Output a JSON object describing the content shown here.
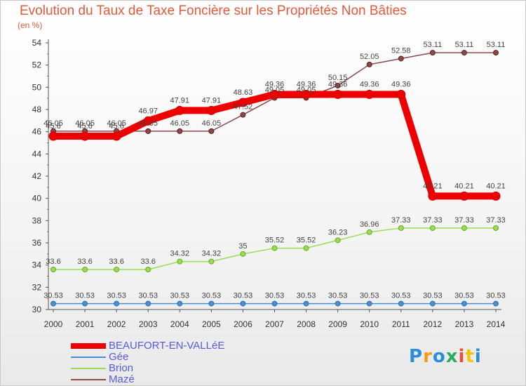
{
  "chart_data": {
    "type": "line",
    "title": "Evolution du Taux de Taxe Foncière sur les Propriétés Non Bâties",
    "ylabel": "(en %)",
    "x": [
      "2000",
      "2001",
      "2002",
      "2003",
      "2004",
      "2005",
      "2006",
      "2007",
      "2008",
      "2009",
      "2010",
      "2011",
      "2012",
      "2013",
      "2014"
    ],
    "ylim": [
      30,
      54
    ],
    "yticks": [
      30,
      32,
      34,
      36,
      38,
      40,
      42,
      44,
      46,
      48,
      50,
      52,
      54
    ],
    "grid": false,
    "legend": "bottom-left",
    "series": [
      {
        "name": "BEAUFORT-EN-VALLéE",
        "color": "#ee0000",
        "values": [
          45.6,
          45.6,
          45.6,
          46.97,
          47.91,
          47.91,
          48.63,
          49.36,
          49.36,
          49.36,
          49.36,
          49.36,
          40.21,
          40.21,
          40.21
        ],
        "labels": [
          "45.6",
          "45.6",
          "45.6",
          "46.97",
          "47.91",
          "47.91",
          "48.63",
          "49.36",
          "49.36",
          "49.36",
          "49.36",
          "49.36",
          "40.21",
          "40.21",
          "40.21"
        ]
      },
      {
        "name": "Gée",
        "color": "#4a8fd0",
        "values": [
          30.53,
          30.53,
          30.53,
          30.53,
          30.53,
          30.53,
          30.53,
          30.53,
          30.53,
          30.53,
          30.53,
          30.53,
          30.53,
          30.53,
          30.53
        ],
        "labels": [
          "30.53",
          "30.53",
          "30.53",
          "30.53",
          "30.53",
          "30.53",
          "30.53",
          "30.53",
          "30.53",
          "30.53",
          "30.53",
          "30.53",
          "30.53",
          "30.53",
          "30.53"
        ]
      },
      {
        "name": "Brion",
        "color": "#99dd55",
        "values": [
          33.6,
          33.6,
          33.6,
          33.6,
          34.32,
          34.32,
          35,
          35.52,
          35.52,
          36.23,
          36.96,
          37.33,
          37.33,
          37.33,
          37.33
        ],
        "labels": [
          "33.6",
          "33.6",
          "33.6",
          "33.6",
          "34.32",
          "34.32",
          "35",
          "35.52",
          "35.52",
          "36.23",
          "36.96",
          "37.33",
          "37.33",
          "37.33",
          "37.33"
        ]
      },
      {
        "name": "Mazé",
        "color": "#8b4a4a",
        "values": [
          46.05,
          46.05,
          46.05,
          46.05,
          46.05,
          46.05,
          47.52,
          49.05,
          49.05,
          50.15,
          52.05,
          52.58,
          53.11,
          53.11,
          53.11
        ],
        "labels": [
          "46.05",
          "46.05",
          "46.05",
          "46.05",
          "46.05",
          "46.05",
          "47.52",
          "49.05",
          "49.05",
          "50.15",
          "52.05",
          "52.58",
          "53.11",
          "53.11",
          "53.11"
        ]
      }
    ]
  },
  "logo": {
    "text": "Proxiti",
    "colors": [
      "#2a8fd6",
      "#f39c12",
      "#2a8fd6",
      "#27ae60",
      "#e74c3c",
      "#f1c40f",
      "#2a8fd6"
    ]
  }
}
